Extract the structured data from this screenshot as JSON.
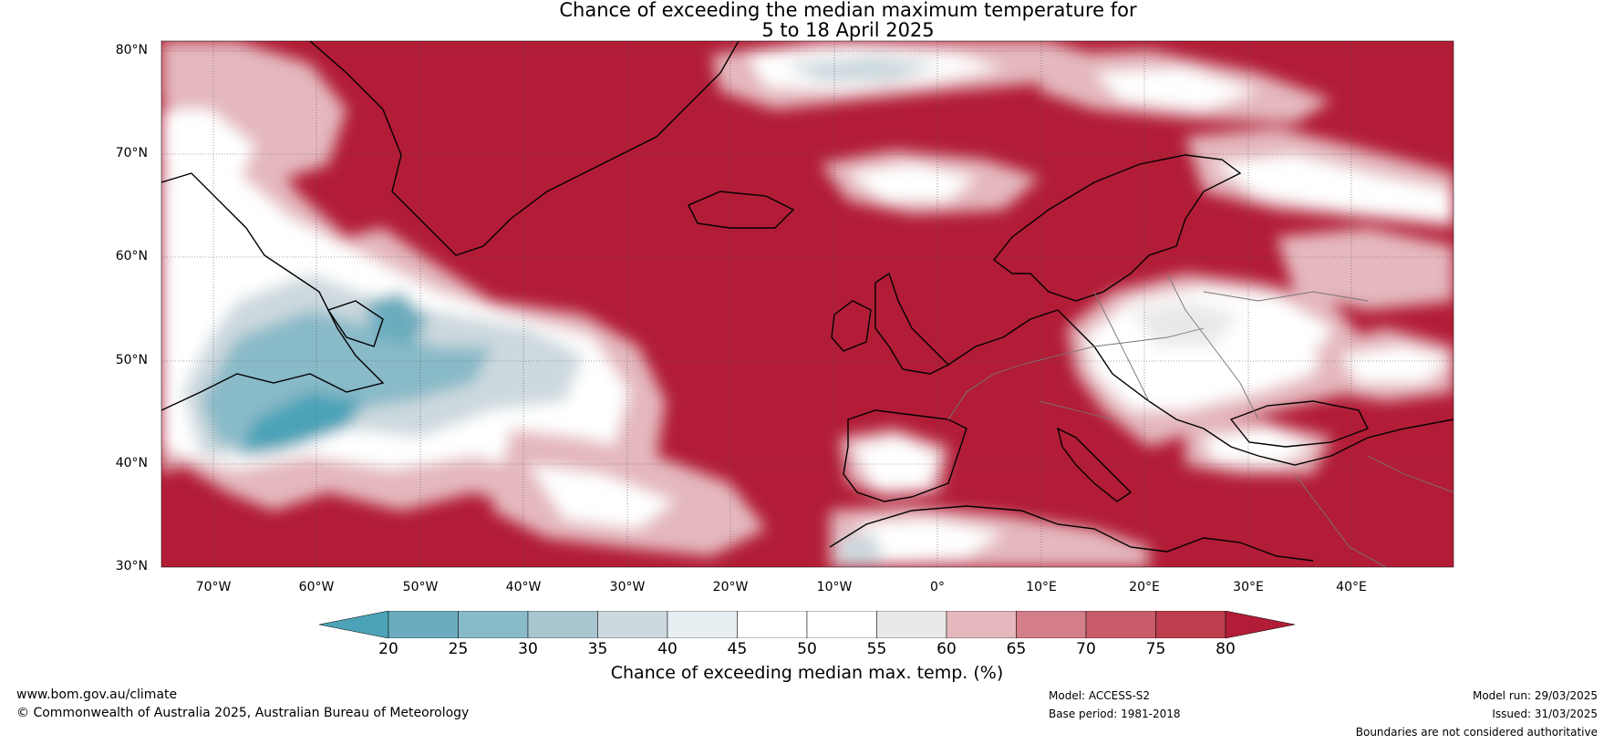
{
  "title": {
    "line1": "Chance of exceeding the median maximum temperature for",
    "line2": "5 to 18 April 2025"
  },
  "axes": {
    "lat_labels": [
      "80°N",
      "70°N",
      "60°N",
      "50°N",
      "40°N",
      "30°N"
    ],
    "lon_labels": [
      "70°W",
      "60°W",
      "50°W",
      "40°W",
      "30°W",
      "20°W",
      "10°W",
      "0°",
      "10°E",
      "20°E",
      "30°E",
      "40°E"
    ]
  },
  "colorbar": {
    "ticks": [
      "20",
      "25",
      "30",
      "35",
      "40",
      "45",
      "50",
      "55",
      "60",
      "65",
      "70",
      "75",
      "80"
    ],
    "colors": [
      "#4ca3b8",
      "#6aacbd",
      "#89bac8",
      "#a9c5cf",
      "#cdd9de",
      "#e8eff2",
      "#ffffff",
      "#ffffff",
      "#eae9e8",
      "#e4b8bd",
      "#d47e89",
      "#c85d69",
      "#bd3f4d",
      "#b21c36"
    ],
    "label": "Chance of exceeding median max. temp. (%)"
  },
  "footer": {
    "website": "www.bom.gov.au/climate",
    "copyright": "© Commonwealth of Australia 2025, Australian Bureau of Meteorology",
    "model": "Model: ACCESS-S2",
    "base_period": "Base period: 1981-2018",
    "model_run": "Model run: 29/03/2025",
    "issued": "Issued: 31/03/2025",
    "disclaimer": "Boundaries are not considered authoritative"
  },
  "colors": {
    "high": "#b21c36",
    "mid_high": "#c85d69",
    "light_red": "#e4b8bd",
    "neutral": "#ffffff",
    "light_blue": "#cdd9de",
    "low": "#4ca3b8"
  }
}
